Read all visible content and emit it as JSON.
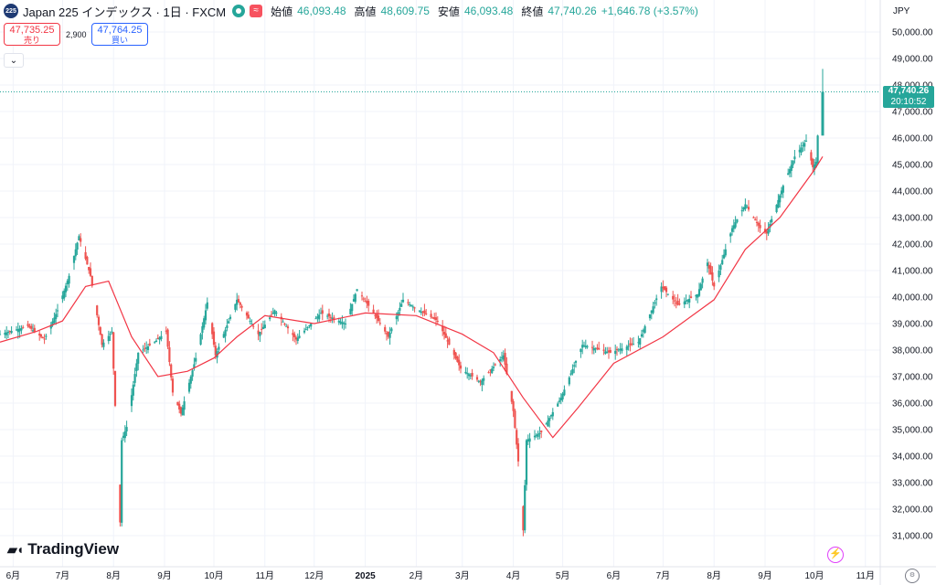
{
  "header": {
    "symbol_logo": "225",
    "title": "Japan 225 インデックス · 1日 · FXCM",
    "status_icons": [
      "market-open-icon",
      "wave-icon"
    ],
    "ohlc": {
      "open_label": "始値",
      "open": "46,093.48",
      "high_label": "高値",
      "high": "48,609.75",
      "low_label": "安値",
      "low": "46,093.48",
      "close_label": "終値",
      "close": "47,740.26",
      "change": "+1,646.78 (+3.57%)"
    }
  },
  "trade": {
    "sell_price": "47,735.25",
    "sell_label": "売り",
    "spread": "2,900",
    "buy_price": "47,764.25",
    "buy_label": "買い"
  },
  "collapse_icon": "chevron-down-icon",
  "currency": "JPY",
  "price_badge": {
    "price": "47,740.26",
    "countdown": "20:10:52"
  },
  "brand": "TradingView",
  "colors": {
    "up": "#26a69a",
    "down": "#ef5350",
    "ma": "#f23645",
    "sell": "#f23645",
    "buy": "#2962ff"
  },
  "chart_data": {
    "type": "candlestick",
    "title": "Japan 225 インデックス · 1日 · FXCM",
    "currency": "JPY",
    "y_range": [
      30250,
      50500
    ],
    "y_ticks": [
      31000,
      32000,
      33000,
      34000,
      35000,
      36000,
      37000,
      38000,
      39000,
      40000,
      41000,
      42000,
      43000,
      44000,
      45000,
      46000,
      47000,
      48000,
      49000,
      50000
    ],
    "y_tick_labels": [
      "31,000.00",
      "32,000.00",
      "33,000.00",
      "34,000.00",
      "35,000.00",
      "36,000.00",
      "37,000.00",
      "38,000.00",
      "39,000.00",
      "40,000.00",
      "41,000.00",
      "42,000.00",
      "43,000.00",
      "44,000.00",
      "45,000.00",
      "46,000.00",
      "47,000.00",
      "48,000.00",
      "49,000.00",
      "50,000.00"
    ],
    "x_labels": [
      "6月",
      "7月",
      "8月",
      "9月",
      "10月",
      "11月",
      "12月",
      "2025",
      "2月",
      "3月",
      "4月",
      "5月",
      "6月",
      "7月",
      "8月",
      "9月",
      "10月",
      "11月"
    ],
    "x_label_dates": [
      "2024-06-01",
      "2024-07-01",
      "2024-08-01",
      "2024-09-01",
      "2024-10-01",
      "2024-11-01",
      "2024-12-01",
      "2025-01-01",
      "2025-02-01",
      "2025-03-01",
      "2025-04-01",
      "2025-05-01",
      "2025-06-01",
      "2025-07-01",
      "2025-08-01",
      "2025-09-01",
      "2025-10-01",
      "2025-11-01"
    ],
    "grid": true,
    "last_price": 47740.26,
    "moving_average_color": "#f23645",
    "price_path": [
      [
        "2024-05-24",
        38600
      ],
      [
        "2024-06-10",
        38900
      ],
      [
        "2024-06-20",
        38400
      ],
      [
        "2024-06-28",
        39500
      ],
      [
        "2024-07-05",
        40800
      ],
      [
        "2024-07-11",
        42300
      ],
      [
        "2024-07-18",
        40800
      ],
      [
        "2024-07-25",
        38200
      ],
      [
        "2024-07-31",
        38700
      ],
      [
        "2024-08-02",
        35900
      ],
      [
        "2024-08-05",
        31500
      ],
      [
        "2024-08-06",
        34600
      ],
      [
        "2024-08-09",
        35100
      ],
      [
        "2024-08-16",
        37900
      ],
      [
        "2024-08-26",
        38300
      ],
      [
        "2024-09-02",
        38700
      ],
      [
        "2024-09-06",
        36400
      ],
      [
        "2024-09-11",
        35600
      ],
      [
        "2024-09-20",
        37700
      ],
      [
        "2024-09-27",
        39800
      ],
      [
        "2024-10-02",
        37800
      ],
      [
        "2024-10-15",
        39900
      ],
      [
        "2024-10-28",
        38600
      ],
      [
        "2024-11-07",
        39500
      ],
      [
        "2024-11-20",
        38400
      ],
      [
        "2024-12-05",
        39400
      ],
      [
        "2024-12-20",
        39000
      ],
      [
        "2024-12-27",
        40300
      ],
      [
        "2025-01-06",
        39400
      ],
      [
        "2025-01-15",
        38500
      ],
      [
        "2025-01-24",
        39900
      ],
      [
        "2025-01-31",
        39600
      ],
      [
        "2025-02-14",
        39100
      ],
      [
        "2025-02-28",
        37300
      ],
      [
        "2025-03-12",
        36800
      ],
      [
        "2025-03-26",
        37800
      ],
      [
        "2025-04-01",
        35700
      ],
      [
        "2025-04-04",
        33800
      ],
      [
        "2025-04-07",
        31200
      ],
      [
        "2025-04-09",
        34600
      ],
      [
        "2025-04-18",
        34900
      ],
      [
        "2025-04-30",
        36200
      ],
      [
        "2025-05-13",
        38200
      ],
      [
        "2025-05-30",
        37900
      ],
      [
        "2025-06-16",
        38300
      ],
      [
        "2025-06-30",
        40400
      ],
      [
        "2025-07-10",
        39700
      ],
      [
        "2025-07-22",
        40100
      ],
      [
        "2025-07-28",
        41300
      ],
      [
        "2025-08-01",
        40400
      ],
      [
        "2025-08-12",
        42600
      ],
      [
        "2025-08-20",
        43500
      ],
      [
        "2025-08-29",
        42600
      ],
      [
        "2025-09-02",
        42400
      ],
      [
        "2025-09-12",
        44200
      ],
      [
        "2025-09-19",
        45300
      ],
      [
        "2025-09-26",
        45900
      ],
      [
        "2025-09-30",
        44900
      ],
      [
        "2025-10-02",
        45100
      ],
      [
        "2025-10-03",
        46093.48
      ],
      [
        "2025-10-06",
        47740.26
      ]
    ],
    "ma_path": [
      [
        "2024-05-24",
        38300
      ],
      [
        "2024-06-15",
        38700
      ],
      [
        "2024-07-01",
        39100
      ],
      [
        "2024-07-15",
        40400
      ],
      [
        "2024-07-29",
        40600
      ],
      [
        "2024-08-12",
        38500
      ],
      [
        "2024-08-28",
        37000
      ],
      [
        "2024-09-15",
        37200
      ],
      [
        "2024-10-01",
        37700
      ],
      [
        "2024-10-15",
        38500
      ],
      [
        "2024-11-01",
        39300
      ],
      [
        "2024-12-01",
        39000
      ],
      [
        "2025-01-01",
        39400
      ],
      [
        "2025-02-01",
        39300
      ],
      [
        "2025-03-01",
        38600
      ],
      [
        "2025-03-20",
        37900
      ],
      [
        "2025-04-07",
        36200
      ],
      [
        "2025-04-25",
        34700
      ],
      [
        "2025-05-10",
        35800
      ],
      [
        "2025-06-01",
        37500
      ],
      [
        "2025-07-01",
        38500
      ],
      [
        "2025-08-01",
        39900
      ],
      [
        "2025-08-20",
        41800
      ],
      [
        "2025-09-10",
        43000
      ],
      [
        "2025-10-01",
        44800
      ],
      [
        "2025-10-06",
        45300
      ]
    ],
    "last_candle": {
      "date": "2025-10-06",
      "open": 46093.48,
      "high": 48609.75,
      "low": 46093.48,
      "close": 47740.26
    }
  }
}
